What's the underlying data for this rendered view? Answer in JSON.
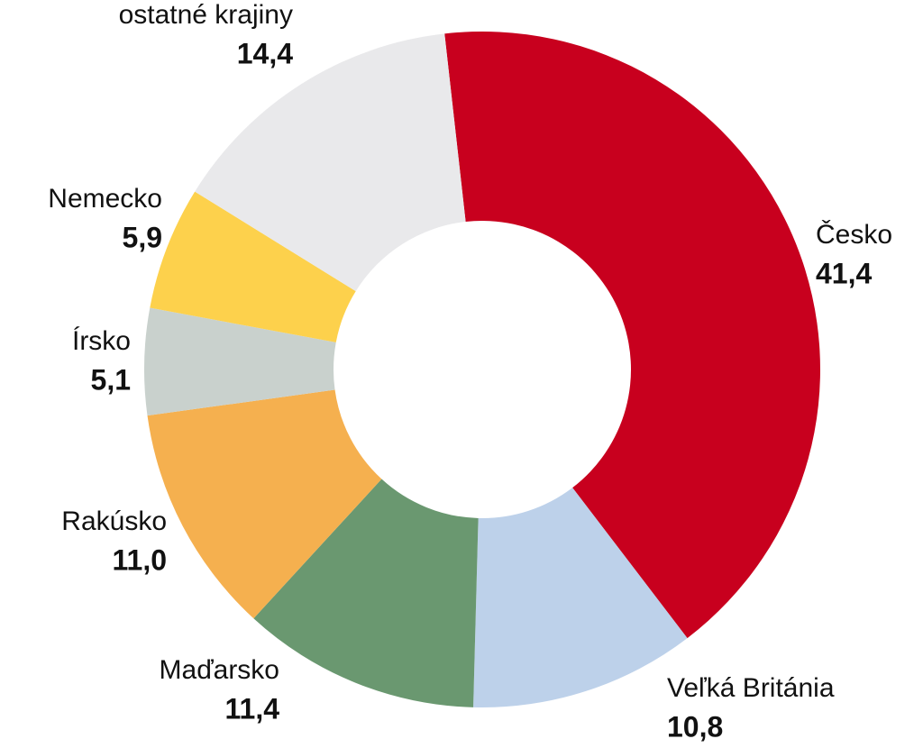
{
  "chart_data": {
    "type": "donut",
    "categories": [
      "Česko",
      "Veľká Británia",
      "Maďarsko",
      "Rakúsko",
      "Írsko",
      "Nemecko",
      "ostatné krajiny"
    ],
    "values": [
      41.4,
      10.8,
      11.4,
      11.0,
      5.1,
      5.9,
      14.4
    ],
    "value_labels": [
      "41,4",
      "10,8",
      "11,4",
      "11,0",
      "5,1",
      "5,9",
      "14,4"
    ],
    "colors": [
      "#c8001e",
      "#bdd1ea",
      "#6a9870",
      "#f5b04f",
      "#c9d1cd",
      "#fdd14c",
      "#e9e9eb"
    ]
  }
}
